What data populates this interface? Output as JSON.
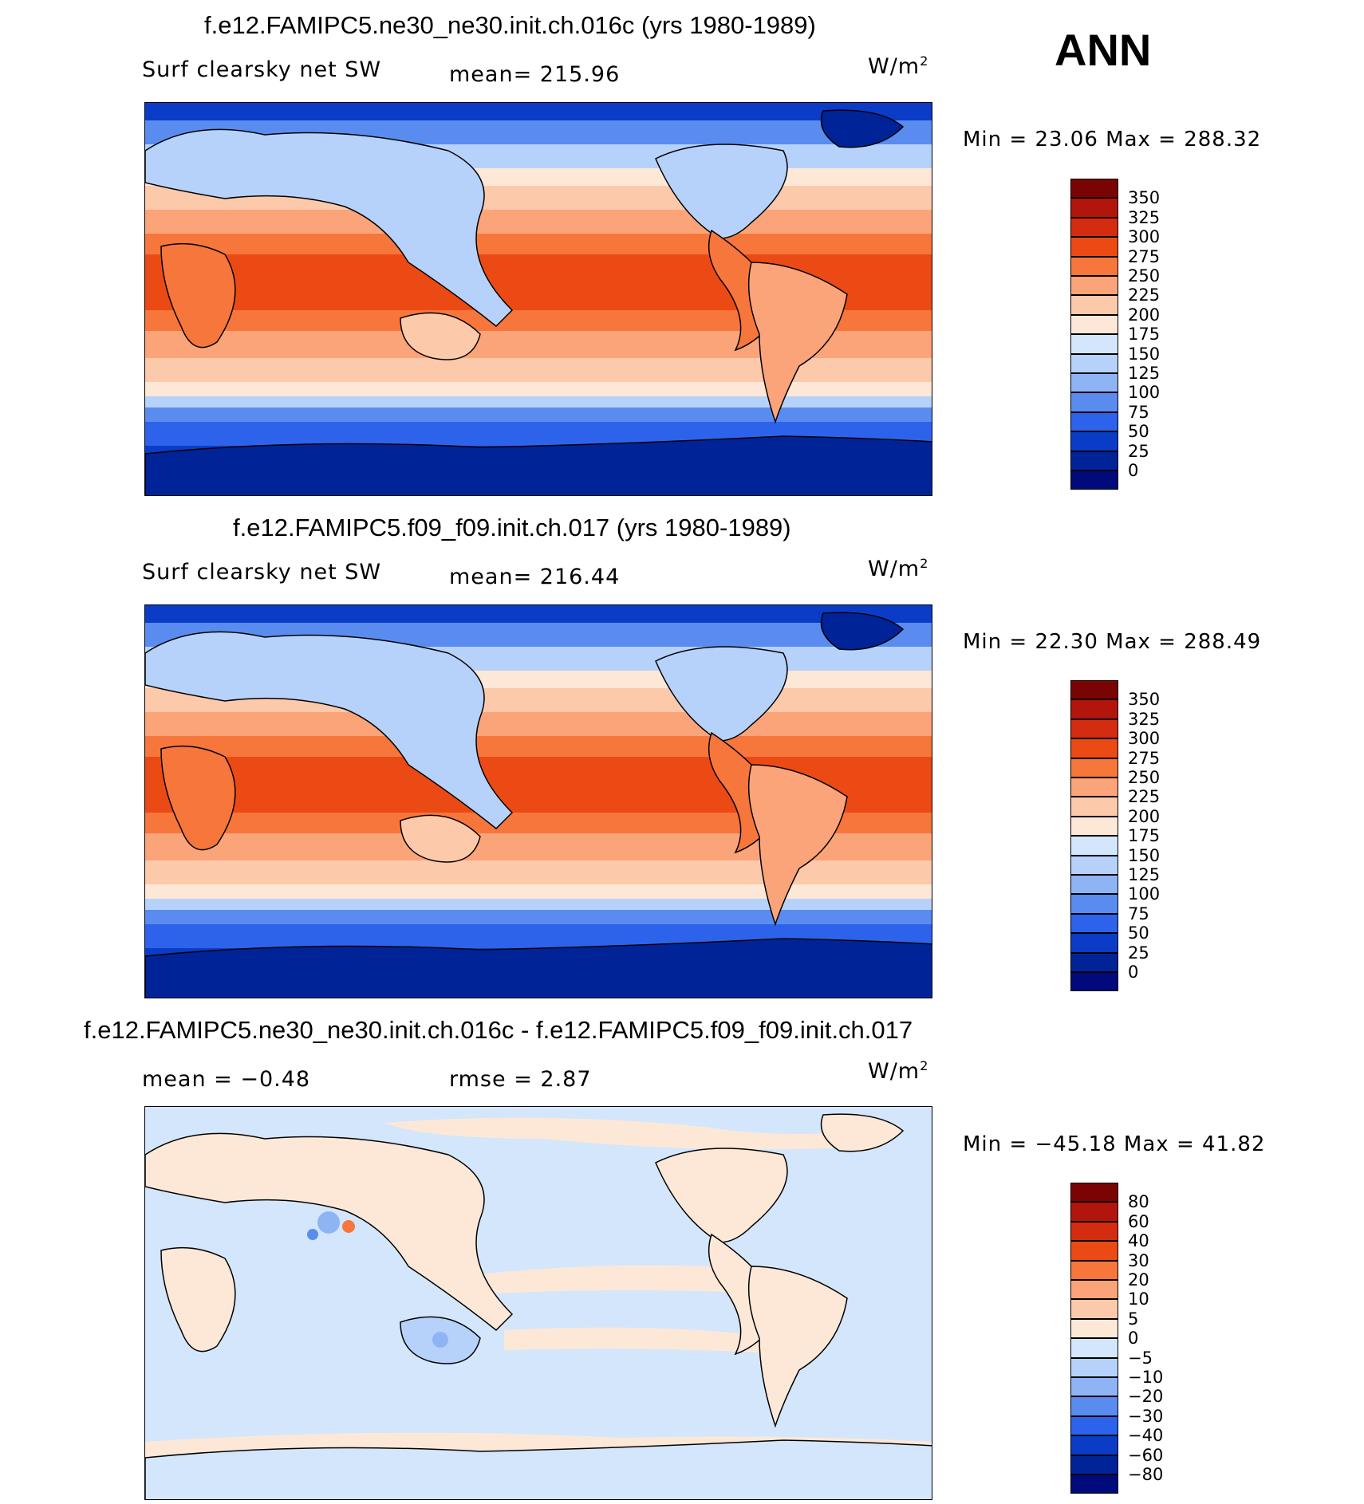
{
  "season": "ANN",
  "units_main": "W/m",
  "units_sup": "2",
  "panels": [
    {
      "title": "f.e12.FAMIPC5.ne30_ne30.init.ch.016c (yrs 1980-1989)",
      "variable": "Surf clearsky net SW",
      "stat1": "mean= 215.96",
      "stat2": "",
      "minmax": "Min =   23.06 Max = 288.32",
      "colorbar_labels": [
        "350",
        "325",
        "300",
        "275",
        "250",
        "225",
        "200",
        "175",
        "150",
        "125",
        "100",
        "75",
        "50",
        "25",
        "0"
      ],
      "colorbar_colors": [
        "#7a0403",
        "#b1150c",
        "#d42c10",
        "#ec4a14",
        "#f7763b",
        "#fba47a",
        "#fcc9ab",
        "#fde8d8",
        "#d3e6fb",
        "#b6d2fa",
        "#8fb4f6",
        "#5a8cf0",
        "#2c63ea",
        "#0a3cc8",
        "#002497",
        "#000a7a"
      ]
    },
    {
      "title": "f.e12.FAMIPC5.f09_f09.init.ch.017 (yrs 1980-1989)",
      "variable": "Surf clearsky net SW",
      "stat1": "mean= 216.44",
      "stat2": "",
      "minmax": "Min =   22.30 Max = 288.49",
      "colorbar_labels": [
        "350",
        "325",
        "300",
        "275",
        "250",
        "225",
        "200",
        "175",
        "150",
        "125",
        "100",
        "75",
        "50",
        "25",
        "0"
      ],
      "colorbar_colors": [
        "#7a0403",
        "#b1150c",
        "#d42c10",
        "#ec4a14",
        "#f7763b",
        "#fba47a",
        "#fcc9ab",
        "#fde8d8",
        "#d3e6fb",
        "#b6d2fa",
        "#8fb4f6",
        "#5a8cf0",
        "#2c63ea",
        "#0a3cc8",
        "#002497",
        "#000a7a"
      ]
    },
    {
      "title": "f.e12.FAMIPC5.ne30_ne30.init.ch.016c - f.e12.FAMIPC5.f09_f09.init.ch.017",
      "variable": "",
      "stat1": "mean =  −0.48",
      "stat2": "rmse =    2.87",
      "minmax": "Min = −45.18 Max =   41.82",
      "colorbar_labels": [
        "80",
        "60",
        "40",
        "30",
        "20",
        "10",
        "5",
        "0",
        "−5",
        "−10",
        "−20",
        "−30",
        "−40",
        "−60",
        "−80"
      ],
      "colorbar_colors": [
        "#7a0403",
        "#b1150c",
        "#d42c10",
        "#ec4a14",
        "#f7763b",
        "#fba47a",
        "#fcc9ab",
        "#fde8d8",
        "#d3e6fb",
        "#b6d2fa",
        "#8fb4f6",
        "#5a8cf0",
        "#2c63ea",
        "#0a3cc8",
        "#002497",
        "#000a7a"
      ]
    }
  ]
}
